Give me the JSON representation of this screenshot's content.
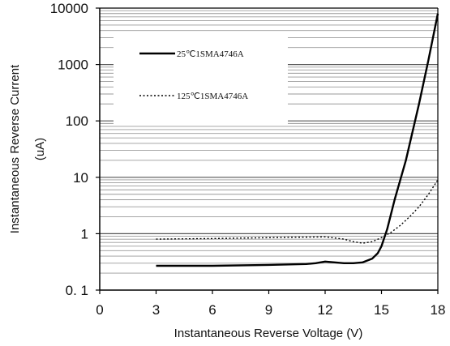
{
  "chart_data": {
    "type": "line",
    "title": "",
    "xlabel": "Instantaneous Reverse Voltage (V)",
    "ylabel": "Instantaneous Reverse Current",
    "ylabel_unit": "(uA)",
    "x_ticks": [
      "0",
      "3",
      "6",
      "9",
      "12",
      "15",
      "18"
    ],
    "y_ticks": [
      "0. 1",
      "1",
      "10",
      "100",
      "1000",
      "10000"
    ],
    "xlim": [
      0,
      18
    ],
    "ylim": [
      0.1,
      10000
    ],
    "y_scale": "log",
    "grid": true,
    "legend_position": "top-left",
    "series": [
      {
        "name": "25℃1SMA4746A",
        "line_style": "solid",
        "color": "#000000",
        "x": [
          3,
          6,
          9,
          11,
          11.5,
          12,
          12.5,
          13,
          13.5,
          14,
          14.5,
          14.8,
          15.0,
          15.3,
          15.7,
          16.3,
          17,
          17.5,
          18
        ],
        "y": [
          0.27,
          0.27,
          0.28,
          0.29,
          0.3,
          0.32,
          0.31,
          0.3,
          0.3,
          0.31,
          0.36,
          0.45,
          0.6,
          1.2,
          4,
          20,
          200,
          1200,
          8000
        ]
      },
      {
        "name": "125℃1SMA4746A",
        "line_style": "dotted",
        "color": "#000000",
        "x": [
          3,
          6,
          9,
          12,
          13,
          13.5,
          14,
          14.5,
          15,
          15.5,
          16,
          16.5,
          17,
          17.5,
          18
        ],
        "y": [
          0.8,
          0.82,
          0.85,
          0.88,
          0.8,
          0.72,
          0.68,
          0.72,
          0.85,
          1.05,
          1.4,
          2.0,
          3.0,
          5.0,
          9.0
        ]
      }
    ]
  }
}
